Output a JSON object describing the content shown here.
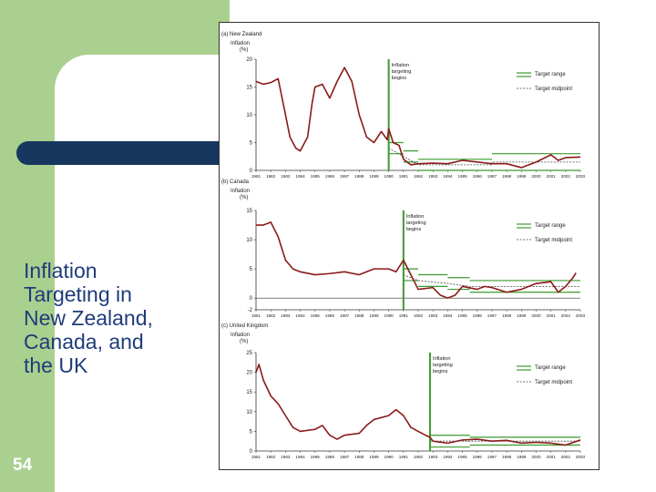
{
  "slide": {
    "title_lines": [
      "Inflation",
      "Targeting in",
      "New Zealand,",
      "Canada, and",
      "the UK"
    ],
    "page_number": "54"
  },
  "chart_data": [
    {
      "type": "line",
      "title": "(a) New Zealand",
      "ylabel_lines": [
        "Inflation",
        "(%)"
      ],
      "ylim": [
        0,
        20
      ],
      "yticks": [
        0,
        5,
        10,
        15,
        20
      ],
      "xlim": [
        1981,
        2003
      ],
      "xticks": [
        "1981",
        "1982",
        "1983",
        "1984",
        "1985",
        "1986",
        "1987",
        "1988",
        "1989",
        "1990",
        "1991",
        "1992",
        "1993",
        "1994",
        "1995",
        "1996",
        "1997",
        "1998",
        "1999",
        "2000",
        "2001",
        "2002",
        "2003"
      ],
      "annotation_lines": [
        "Inflation",
        "targeting",
        "begins"
      ],
      "targeting_begins": 1990,
      "legend": [
        "Target range",
        "Target midpoint"
      ],
      "series": [
        {
          "values": [
            [
              1981,
              16
            ],
            [
              1981.5,
              15.5
            ],
            [
              1982,
              15.8
            ],
            [
              1982.5,
              16.5
            ],
            [
              1983,
              10
            ],
            [
              1983.3,
              6
            ],
            [
              1983.7,
              4
            ],
            [
              1984,
              3.5
            ],
            [
              1984.5,
              6
            ],
            [
              1984.8,
              12
            ],
            [
              1985,
              15
            ],
            [
              1985.5,
              15.5
            ],
            [
              1986,
              13
            ],
            [
              1986.5,
              16
            ],
            [
              1987,
              18.5
            ],
            [
              1987.5,
              16
            ],
            [
              1988,
              10
            ],
            [
              1988.5,
              6
            ],
            [
              1989,
              5
            ],
            [
              1989.5,
              7
            ],
            [
              1989.9,
              5.5
            ],
            [
              1990,
              7.5
            ],
            [
              1990.3,
              5
            ],
            [
              1990.7,
              4.5
            ],
            [
              1991,
              2
            ],
            [
              1991.5,
              1
            ],
            [
              1992,
              1.2
            ],
            [
              1993,
              1.3
            ],
            [
              1994,
              1.2
            ],
            [
              1995,
              1.8
            ],
            [
              1996,
              1.5
            ],
            [
              1997,
              1.2
            ],
            [
              1998,
              1.2
            ],
            [
              1999,
              0.5
            ],
            [
              2000,
              1.5
            ],
            [
              2001,
              2.8
            ],
            [
              2001.5,
              1.8
            ],
            [
              2002,
              2.3
            ],
            [
              2003,
              2.4
            ]
          ]
        }
      ],
      "target_range": [
        {
          "from": 1990,
          "to": 1991,
          "low": 3,
          "high": 5
        },
        {
          "from": 1991,
          "to": 1992,
          "low": 1.5,
          "high": 3.5
        },
        {
          "from": 1992,
          "to": 1997,
          "low": 0,
          "high": 2
        },
        {
          "from": 1997,
          "to": 2003,
          "low": 0,
          "high": 3
        }
      ],
      "target_midpoint": [
        [
          1990,
          4
        ],
        [
          1991,
          2.5
        ],
        [
          1992,
          1
        ],
        [
          1997,
          1
        ],
        [
          1997,
          1.5
        ],
        [
          2003,
          1.5
        ]
      ]
    },
    {
      "type": "line",
      "title": "(b) Canada",
      "ylabel_lines": [
        "Inflation",
        "(%)"
      ],
      "ylim": [
        -2,
        15
      ],
      "yticks": [
        -2,
        0,
        5,
        10,
        15
      ],
      "xlim": [
        1981,
        2003
      ],
      "xticks": [
        "1981",
        "1982",
        "1983",
        "1984",
        "1985",
        "1986",
        "1987",
        "1988",
        "1989",
        "1990",
        "1991",
        "1992",
        "1993",
        "1994",
        "1995",
        "1996",
        "1997",
        "1998",
        "1999",
        "2000",
        "2001",
        "2002",
        "2003"
      ],
      "annotation_lines": [
        "Inflation",
        "targeting",
        "begins"
      ],
      "targeting_begins": 1991,
      "legend": [
        "Target range",
        "Target midpoint"
      ],
      "series": [
        {
          "values": [
            [
              1981,
              12.5
            ],
            [
              1981.5,
              12.5
            ],
            [
              1982,
              13
            ],
            [
              1982.5,
              10.5
            ],
            [
              1983,
              6.5
            ],
            [
              1983.5,
              5
            ],
            [
              1984,
              4.5
            ],
            [
              1985,
              4
            ],
            [
              1986,
              4.2
            ],
            [
              1987,
              4.5
            ],
            [
              1988,
              4
            ],
            [
              1989,
              5
            ],
            [
              1990,
              5
            ],
            [
              1990.5,
              4.5
            ],
            [
              1991,
              6.5
            ],
            [
              1991.5,
              4
            ],
            [
              1992,
              1.5
            ],
            [
              1993,
              1.8
            ],
            [
              1993.5,
              0.5
            ],
            [
              1994,
              0
            ],
            [
              1994.5,
              0.5
            ],
            [
              1995,
              2
            ],
            [
              1996,
              1.5
            ],
            [
              1996.5,
              2
            ],
            [
              1997,
              1.8
            ],
            [
              1998,
              1
            ],
            [
              1999,
              1.5
            ],
            [
              2000,
              2.5
            ],
            [
              2001,
              2.8
            ],
            [
              2001.5,
              1
            ],
            [
              2002,
              2
            ],
            [
              2002.5,
              3.5
            ],
            [
              2002.7,
              4.3
            ]
          ]
        }
      ],
      "target_range": [
        {
          "from": 1991,
          "to": 1992,
          "low": 3,
          "high": 5
        },
        {
          "from": 1992,
          "to": 1994,
          "low": 2,
          "high": 4
        },
        {
          "from": 1994,
          "to": 1995.5,
          "low": 1.5,
          "high": 3.5
        },
        {
          "from": 1995.5,
          "to": 2003,
          "low": 1,
          "high": 3
        }
      ],
      "target_midpoint": [
        [
          1991,
          4
        ],
        [
          1992,
          3
        ],
        [
          1994,
          2.5
        ],
        [
          1995.5,
          2
        ],
        [
          2003,
          2
        ]
      ]
    },
    {
      "type": "line",
      "title": "(c) United Kingdom",
      "ylabel_lines": [
        "Inflation",
        "(%)"
      ],
      "ylim": [
        0,
        25
      ],
      "yticks": [
        0,
        5,
        10,
        15,
        20,
        25
      ],
      "xlim": [
        1981,
        2003
      ],
      "xticks": [
        "1981",
        "1982",
        "1983",
        "1984",
        "1985",
        "1986",
        "1987",
        "1988",
        "1989",
        "1990",
        "1991",
        "1992",
        "1993",
        "1994",
        "1995",
        "1996",
        "1997",
        "1998",
        "1999",
        "2000",
        "2001",
        "2002",
        "2003"
      ],
      "annotation_lines": [
        "Inflation",
        "targeting",
        "begins"
      ],
      "targeting_begins": 1992.8,
      "legend": [
        "Target range",
        "Target midpoint"
      ],
      "series": [
        {
          "values": [
            [
              1981,
              20
            ],
            [
              1981.2,
              22
            ],
            [
              1981.5,
              18
            ],
            [
              1982,
              14
            ],
            [
              1982.5,
              12
            ],
            [
              1983,
              9
            ],
            [
              1983.5,
              6
            ],
            [
              1984,
              5
            ],
            [
              1985,
              5.5
            ],
            [
              1985.5,
              6.5
            ],
            [
              1986,
              4
            ],
            [
              1986.5,
              3
            ],
            [
              1987,
              4
            ],
            [
              1988,
              4.5
            ],
            [
              1988.5,
              6.5
            ],
            [
              1989,
              8
            ],
            [
              1990,
              9
            ],
            [
              1990.5,
              10.5
            ],
            [
              1991,
              9
            ],
            [
              1991.5,
              6
            ],
            [
              1992,
              5
            ],
            [
              1992.5,
              4
            ],
            [
              1992.8,
              3.5
            ],
            [
              1993,
              2.5
            ],
            [
              1994,
              2
            ],
            [
              1995,
              2.8
            ],
            [
              1996,
              3
            ],
            [
              1997,
              2.5
            ],
            [
              1998,
              2.7
            ],
            [
              1999,
              2
            ],
            [
              2000,
              2.2
            ],
            [
              2001,
              2
            ],
            [
              2002,
              1.5
            ],
            [
              2003,
              2.8
            ]
          ]
        }
      ],
      "target_range": [
        {
          "from": 1992.8,
          "to": 1995.5,
          "low": 1,
          "high": 4
        },
        {
          "from": 1995.5,
          "to": 2003,
          "low": 1.5,
          "high": 3.5
        }
      ],
      "target_midpoint": [
        [
          1992.8,
          2.5
        ],
        [
          2003,
          2.5
        ]
      ]
    }
  ],
  "colors": {
    "sidebar_green": "#a9d08e",
    "bar_blue": "#17375e",
    "title_blue": "#1f3c7a",
    "series": "#8b1a1a",
    "target": "#3c9a2e",
    "axis": "#333333"
  }
}
